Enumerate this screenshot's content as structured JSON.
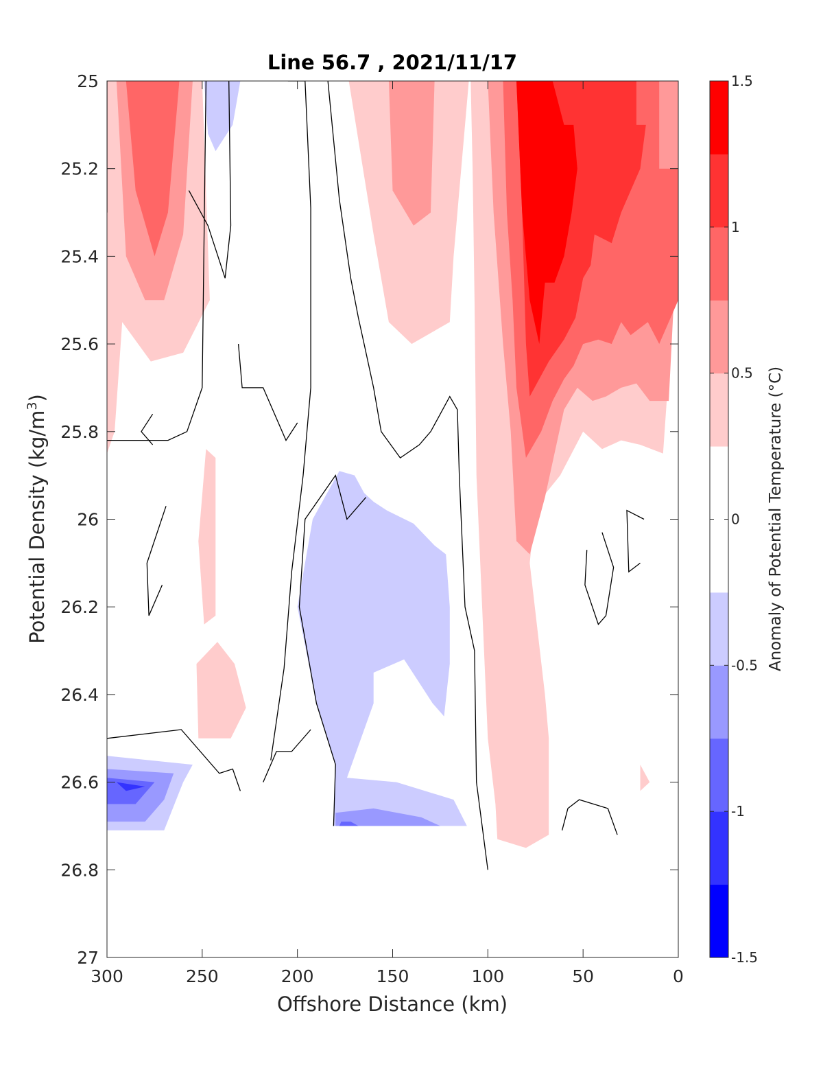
{
  "chart_data": {
    "type": "contour",
    "title": "Line 56.7 , 2021/11/17",
    "xlabel": "Offshore Distance (km)",
    "ylabel_main": "Potential Density (kg/m",
    "ylabel_sup": "3",
    "ylabel_end": ")",
    "xlim": [
      300,
      0
    ],
    "ylim": [
      25,
      27
    ],
    "y_reversed": true,
    "x_reversed": true,
    "x_ticks": [
      300,
      250,
      200,
      150,
      100,
      50,
      0
    ],
    "x_tick_labels": [
      "300",
      "250",
      "200",
      "150",
      "100",
      "50",
      "0"
    ],
    "y_ticks": [
      25,
      25.2,
      25.4,
      25.6,
      25.8,
      26,
      26.2,
      26.4,
      26.6,
      26.8,
      27
    ],
    "y_tick_labels": [
      "25",
      "25.2",
      "25.4",
      "25.6",
      "25.8",
      "26",
      "26.2",
      "26.4",
      "26.6",
      "26.8",
      "27"
    ],
    "colorbar": {
      "label": "Anomaly of Potential Temperature (°C)",
      "range": [
        -1.5,
        1.5
      ],
      "ticks": [
        1.5,
        1,
        0.5,
        0,
        -0.5,
        -1,
        -1.5
      ],
      "tick_labels": [
        "1.5",
        "1",
        "0.5",
        "0",
        "-0.5",
        "-1",
        "-1.5"
      ],
      "levels": [
        -1.5,
        -1.25,
        -1.0,
        -0.75,
        -0.5,
        -0.25,
        0.25,
        0.5,
        0.75,
        1.0,
        1.25,
        1.5
      ],
      "colors": [
        "#0000ff",
        "#3333ff",
        "#6666ff",
        "#9999ff",
        "#ccccff",
        "#ffffff",
        "#ffcccc",
        "#ff9999",
        "#ff6666",
        "#ff3333",
        "#ff0000"
      ]
    },
    "regions": [
      {
        "color": "#ffcccc",
        "points": [
          [
            300,
            25.0
          ],
          [
            250,
            25.0
          ],
          [
            246,
            25.5
          ],
          [
            260,
            25.62
          ],
          [
            277,
            25.64
          ],
          [
            292,
            25.55
          ],
          [
            296,
            25.8
          ],
          [
            300,
            25.85
          ]
        ]
      },
      {
        "color": "#ff9999",
        "points": [
          [
            295,
            25.0
          ],
          [
            255,
            25.0
          ],
          [
            260,
            25.35
          ],
          [
            270,
            25.5
          ],
          [
            280,
            25.5
          ],
          [
            290,
            25.4
          ]
        ]
      },
      {
        "color": "#ff6666",
        "points": [
          [
            290,
            25.0
          ],
          [
            262,
            25.0
          ],
          [
            268,
            25.3
          ],
          [
            275,
            25.4
          ],
          [
            285,
            25.25
          ]
        ]
      },
      {
        "color": "#ffcccc",
        "points": [
          [
            248,
            25.84
          ],
          [
            243,
            25.86
          ],
          [
            243,
            26.22
          ],
          [
            249,
            26.24
          ],
          [
            252,
            26.05
          ]
        ]
      },
      {
        "color": "#ffcccc",
        "points": [
          [
            252,
            26.5
          ],
          [
            235,
            26.5
          ],
          [
            227,
            26.43
          ],
          [
            233,
            26.33
          ],
          [
            242,
            26.28
          ],
          [
            253,
            26.33
          ]
        ]
      },
      {
        "color": "#ffcccc",
        "points": [
          [
            20,
            26.56
          ],
          [
            15,
            26.6
          ],
          [
            20,
            26.62
          ]
        ]
      },
      {
        "color": "#ccccff",
        "points": [
          [
            249,
            25.0
          ],
          [
            230,
            25.0
          ],
          [
            234,
            25.1
          ],
          [
            243,
            25.16
          ],
          [
            247,
            25.12
          ]
        ]
      },
      {
        "color": "#ccccff",
        "points": [
          [
            178,
            25.89
          ],
          [
            192,
            26.0
          ],
          [
            200,
            26.2
          ],
          [
            190,
            26.42
          ],
          [
            180,
            26.56
          ],
          [
            181,
            26.7
          ],
          [
            111,
            26.7
          ],
          [
            118,
            26.64
          ],
          [
            148,
            26.6
          ],
          [
            174,
            26.59
          ],
          [
            160,
            26.42
          ],
          [
            160,
            26.35
          ],
          [
            144,
            26.32
          ],
          [
            129,
            26.42
          ],
          [
            123,
            26.45
          ],
          [
            120,
            26.33
          ],
          [
            120,
            26.2
          ],
          [
            122,
            26.08
          ],
          [
            128,
            26.06
          ],
          [
            139,
            26.01
          ],
          [
            153,
            25.98
          ],
          [
            160,
            25.96
          ],
          [
            165,
            25.94
          ],
          [
            170,
            25.9
          ]
        ]
      },
      {
        "color": "#ccccff",
        "points": [
          [
            300,
            26.54
          ],
          [
            255,
            26.56
          ],
          [
            260,
            26.6
          ],
          [
            270,
            26.71
          ],
          [
            300,
            26.71
          ]
        ]
      },
      {
        "color": "#9999ff",
        "points": [
          [
            300,
            26.57
          ],
          [
            265,
            26.58
          ],
          [
            270,
            26.64
          ],
          [
            280,
            26.69
          ],
          [
            300,
            26.69
          ]
        ]
      },
      {
        "color": "#6666ff",
        "points": [
          [
            300,
            26.59
          ],
          [
            275,
            26.6
          ],
          [
            285,
            26.65
          ],
          [
            300,
            26.65
          ]
        ]
      },
      {
        "color": "#3333ff",
        "points": [
          [
            295,
            26.6
          ],
          [
            280,
            26.61
          ],
          [
            290,
            26.62
          ]
        ]
      },
      {
        "color": "#9999ff",
        "points": [
          [
            180,
            26.7
          ],
          [
            125,
            26.7
          ],
          [
            135,
            26.68
          ],
          [
            160,
            26.66
          ],
          [
            180,
            26.67
          ]
        ]
      },
      {
        "color": "#6666ff",
        "points": [
          [
            178,
            26.7
          ],
          [
            168,
            26.7
          ],
          [
            172,
            26.69
          ],
          [
            177,
            26.69
          ]
        ]
      },
      {
        "color": "#ffcccc",
        "points": [
          [
            173,
            25.0
          ],
          [
            110,
            25.0
          ],
          [
            118,
            25.4
          ],
          [
            120,
            25.55
          ],
          [
            140,
            25.6
          ],
          [
            152,
            25.55
          ],
          [
            160,
            25.35
          ]
        ]
      },
      {
        "color": "#ff9999",
        "points": [
          [
            152,
            25.0
          ],
          [
            128,
            25.0
          ],
          [
            130,
            25.3
          ],
          [
            139,
            25.33
          ],
          [
            150,
            25.25
          ]
        ]
      },
      {
        "color": "#ffcccc",
        "points": [
          [
            109,
            25.0
          ],
          [
            0,
            25.0
          ],
          [
            0,
            25.35
          ],
          [
            8,
            25.85
          ],
          [
            20,
            25.83
          ],
          [
            30,
            25.82
          ],
          [
            40,
            25.84
          ],
          [
            50,
            25.8
          ],
          [
            62,
            25.9
          ],
          [
            75,
            25.97
          ],
          [
            78,
            26.1
          ],
          [
            70,
            26.4
          ],
          [
            68,
            26.5
          ],
          [
            68,
            26.66
          ],
          [
            68,
            26.72
          ],
          [
            80,
            26.75
          ],
          [
            95,
            26.73
          ],
          [
            96,
            26.65
          ],
          [
            100,
            26.5
          ],
          [
            103,
            26.2
          ],
          [
            106,
            25.9
          ],
          [
            107,
            25.5
          ],
          [
            108,
            25.2
          ]
        ]
      },
      {
        "color": "#ff9999",
        "points": [
          [
            100,
            25.0
          ],
          [
            0,
            25.0
          ],
          [
            0,
            25.3
          ],
          [
            5,
            25.73
          ],
          [
            15,
            25.73
          ],
          [
            22,
            25.69
          ],
          [
            30,
            25.7
          ],
          [
            38,
            25.72
          ],
          [
            45,
            25.73
          ],
          [
            53,
            25.7
          ],
          [
            60,
            25.75
          ],
          [
            70,
            25.95
          ],
          [
            78,
            26.08
          ],
          [
            85,
            26.05
          ],
          [
            88,
            25.8
          ],
          [
            92,
            25.6
          ],
          [
            97,
            25.3
          ]
        ]
      },
      {
        "color": "#ff6666",
        "points": [
          [
            92,
            25.0
          ],
          [
            10,
            25.0
          ],
          [
            10,
            25.2
          ],
          [
            0,
            25.2
          ],
          [
            0,
            25.5
          ],
          [
            10,
            25.6
          ],
          [
            16,
            25.55
          ],
          [
            25,
            25.58
          ],
          [
            30,
            25.55
          ],
          [
            35,
            25.6
          ],
          [
            42,
            25.59
          ],
          [
            50,
            25.6
          ],
          [
            55,
            25.65
          ],
          [
            60,
            25.68
          ],
          [
            66,
            25.73
          ],
          [
            72,
            25.8
          ],
          [
            80,
            25.86
          ],
          [
            85,
            25.7
          ],
          [
            87,
            25.5
          ],
          [
            90,
            25.3
          ]
        ]
      },
      {
        "color": "#ff3333",
        "points": [
          [
            85,
            25.0
          ],
          [
            22,
            25.0
          ],
          [
            22,
            25.1
          ],
          [
            17,
            25.1
          ],
          [
            20,
            25.2
          ],
          [
            30,
            25.3
          ],
          [
            35,
            25.37
          ],
          [
            44,
            25.35
          ],
          [
            46,
            25.42
          ],
          [
            50,
            25.45
          ],
          [
            54,
            25.54
          ],
          [
            60,
            25.59
          ],
          [
            68,
            25.64
          ],
          [
            78,
            25.72
          ],
          [
            80,
            25.6
          ],
          [
            82,
            25.3
          ]
        ]
      },
      {
        "color": "#ff0000",
        "points": [
          [
            85,
            25.0
          ],
          [
            66,
            25.0
          ],
          [
            60,
            25.1
          ],
          [
            55,
            25.1
          ],
          [
            53,
            25.2
          ],
          [
            56,
            25.3
          ],
          [
            60,
            25.4
          ],
          [
            65,
            25.46
          ],
          [
            70,
            25.46
          ],
          [
            73,
            25.6
          ],
          [
            78,
            25.5
          ],
          [
            82,
            25.3
          ]
        ]
      }
    ],
    "contour_lines": [
      [
        [
          300,
          25.0
        ],
        [
          300,
          25.3
        ]
      ],
      [
        [
          248,
          25.0
        ],
        [
          250,
          25.7
        ],
        [
          258,
          25.8
        ],
        [
          268,
          25.82
        ],
        [
          300,
          25.82
        ]
      ],
      [
        [
          236,
          25.0
        ],
        [
          235,
          25.33
        ],
        [
          238,
          25.45
        ],
        [
          247,
          25.33
        ],
        [
          257,
          25.25
        ]
      ],
      [
        [
          205,
          25.0
        ],
        [
          196,
          25.0
        ],
        [
          193,
          25.29
        ],
        [
          193,
          25.7
        ],
        [
          197,
          25.9
        ],
        [
          203,
          26.12
        ],
        [
          207,
          26.34
        ],
        [
          214,
          26.55
        ]
      ],
      [
        [
          164,
          25.95
        ],
        [
          174,
          26.0
        ],
        [
          180,
          25.9
        ],
        [
          196,
          26.0
        ],
        [
          199,
          26.2
        ],
        [
          190,
          26.42
        ],
        [
          180,
          26.56
        ],
        [
          181,
          26.7
        ]
      ],
      [
        [
          184,
          25.0
        ],
        [
          178,
          25.27
        ],
        [
          172,
          25.45
        ],
        [
          168,
          25.54
        ],
        [
          165,
          25.6
        ],
        [
          160,
          25.7
        ],
        [
          156,
          25.8
        ],
        [
          146,
          25.86
        ],
        [
          136,
          25.83
        ],
        [
          130,
          25.8
        ],
        [
          125,
          25.76
        ],
        [
          120,
          25.72
        ],
        [
          116,
          25.75
        ],
        [
          115,
          25.9
        ],
        [
          112,
          26.2
        ],
        [
          107,
          26.3
        ],
        [
          106,
          26.6
        ],
        [
          100,
          26.8
        ]
      ],
      [
        [
          231,
          25.6
        ],
        [
          229,
          25.7
        ],
        [
          218,
          25.7
        ],
        [
          206,
          25.82
        ],
        [
          200,
          25.78
        ]
      ],
      [
        [
          276,
          25.76
        ],
        [
          282,
          25.8
        ],
        [
          276,
          25.83
        ]
      ],
      [
        [
          269,
          25.97
        ],
        [
          279,
          26.1
        ],
        [
          278,
          26.22
        ],
        [
          271,
          26.15
        ]
      ],
      [
        [
          300,
          26.5
        ],
        [
          261,
          26.48
        ],
        [
          241,
          26.58
        ],
        [
          234,
          26.57
        ],
        [
          230,
          26.62
        ]
      ],
      [
        [
          193,
          26.48
        ],
        [
          203,
          26.53
        ],
        [
          211,
          26.53
        ],
        [
          218,
          26.6
        ]
      ],
      [
        [
          61,
          26.71
        ],
        [
          58,
          26.66
        ],
        [
          52,
          26.64
        ],
        [
          37,
          26.66
        ],
        [
          32,
          26.72
        ]
      ],
      [
        [
          48,
          26.07
        ],
        [
          49,
          26.15
        ],
        [
          42,
          26.24
        ],
        [
          38,
          26.22
        ],
        [
          34,
          26.11
        ],
        [
          40,
          26.03
        ]
      ],
      [
        [
          18,
          26.0
        ],
        [
          27,
          25.98
        ],
        [
          26,
          26.12
        ],
        [
          20,
          26.1
        ]
      ]
    ]
  }
}
